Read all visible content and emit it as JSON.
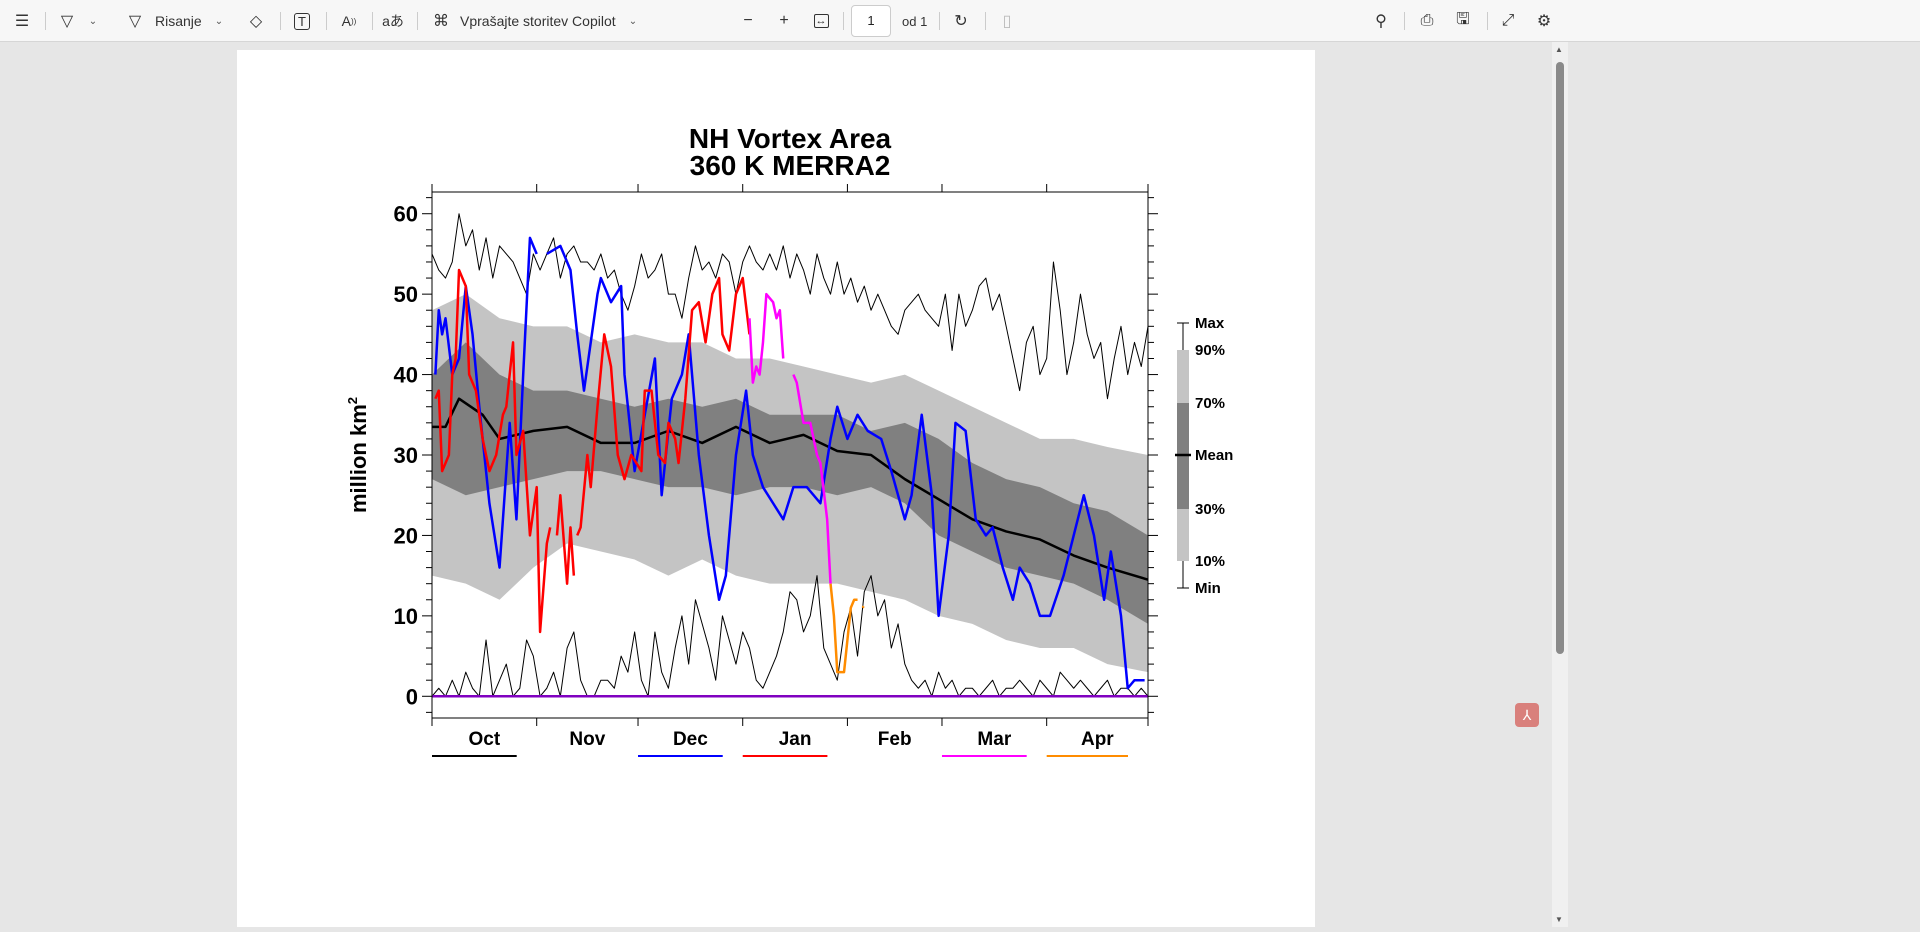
{
  "toolbar": {
    "draw_label": "Risanje",
    "copilot_label": "Vprašajte storitev Copilot",
    "page_number": "1",
    "page_total": "od 1"
  },
  "chart_data": {
    "type": "line",
    "title": "NH Vortex Area",
    "subtitle": "360 K   MERRA2",
    "ylabel": "million km",
    "ylabel_sup": "2",
    "ylim": [
      -2.7,
      62.7
    ],
    "xlim_days": [
      0,
      212
    ],
    "yticks": [
      "0",
      "10",
      "20",
      "30",
      "40",
      "50",
      "60"
    ],
    "months": [
      "Oct",
      "Nov",
      "Dec",
      "Jan",
      "Feb",
      "Mar",
      "Apr"
    ],
    "legend": {
      "max": "Max",
      "p90": "90%",
      "p70": "70%",
      "mean": "Mean",
      "p30": "30%",
      "p10": "10%",
      "min": "Min"
    },
    "band_days": [
      0,
      10,
      20,
      30,
      40,
      50,
      60,
      70,
      80,
      90,
      100,
      110,
      120,
      130,
      140,
      150,
      160,
      170,
      180,
      190,
      200,
      212
    ],
    "p90": [
      48,
      50,
      47,
      46,
      46,
      44,
      45,
      44,
      44,
      42,
      42,
      41,
      40,
      39,
      40,
      38,
      36,
      34,
      32,
      32,
      31,
      30
    ],
    "p70": [
      40,
      44,
      40,
      38,
      38,
      37,
      36,
      37,
      36,
      37,
      35,
      35,
      35,
      33,
      34,
      32,
      29,
      27,
      26,
      24,
      23,
      20
    ],
    "p30": [
      27,
      25,
      26,
      27,
      28,
      28,
      27,
      26,
      26,
      25,
      26,
      26,
      25,
      26,
      24,
      20,
      18,
      16,
      15,
      14,
      12,
      9
    ],
    "p10": [
      15,
      14,
      12,
      16,
      19,
      18,
      17,
      15,
      17,
      15,
      14,
      14,
      14,
      13,
      12,
      10,
      9,
      7,
      6,
      6,
      4,
      3
    ],
    "mean": [
      [
        0,
        33.5
      ],
      [
        4,
        33.5
      ],
      [
        8,
        37
      ],
      [
        15,
        35
      ],
      [
        20,
        32
      ],
      [
        30,
        33
      ],
      [
        40,
        33.5
      ],
      [
        50,
        31.5
      ],
      [
        60,
        31.5
      ],
      [
        70,
        33
      ],
      [
        80,
        31.5
      ],
      [
        90,
        33.5
      ],
      [
        100,
        31.5
      ],
      [
        110,
        32.5
      ],
      [
        120,
        30.5
      ],
      [
        130,
        30
      ],
      [
        140,
        27
      ],
      [
        150,
        24.5
      ],
      [
        160,
        22
      ],
      [
        170,
        20.5
      ],
      [
        180,
        19.5
      ],
      [
        190,
        17.5
      ],
      [
        200,
        16
      ],
      [
        212,
        14.5
      ]
    ],
    "max_step_days": 2,
    "max": [
      55,
      53,
      52,
      54,
      60,
      56,
      58,
      53,
      57,
      52,
      56,
      55,
      54,
      52,
      50,
      55,
      53,
      55,
      57,
      52,
      55,
      56,
      54,
      54,
      53,
      55,
      52,
      53,
      50,
      48,
      51,
      55,
      52,
      53,
      55,
      50,
      50,
      47,
      52,
      56,
      53,
      54,
      52,
      55,
      54,
      50,
      54,
      56,
      54,
      53,
      55,
      53,
      56,
      52,
      55,
      53,
      50,
      55,
      52,
      50,
      54,
      50,
      52,
      49,
      51,
      48,
      50,
      48,
      46,
      45,
      48,
      49,
      50,
      48,
      47,
      46,
      50,
      43,
      50,
      46,
      48,
      51,
      52,
      48,
      50,
      46,
      42,
      38,
      44,
      46,
      40,
      42,
      54,
      48,
      40,
      44,
      50,
      45,
      42,
      44,
      37,
      42,
      46,
      40,
      44,
      41,
      46,
      47
    ],
    "min": [
      0,
      1,
      0,
      2,
      0,
      3,
      1,
      0,
      7,
      0,
      2,
      4,
      0,
      1,
      7,
      5,
      0,
      1,
      3,
      0,
      6,
      8,
      2,
      0,
      0,
      2,
      2,
      1,
      5,
      3,
      8,
      2,
      0,
      8,
      3,
      1,
      6,
      10,
      4,
      12,
      9,
      6,
      2,
      10,
      7,
      4,
      8,
      6,
      2,
      1,
      3,
      5,
      8,
      13,
      12,
      8,
      10,
      15,
      6,
      4,
      2,
      8,
      11,
      5,
      13,
      15,
      10,
      12,
      6,
      9,
      4,
      2,
      1,
      2,
      0,
      3,
      1,
      2,
      0,
      1,
      1,
      0,
      1,
      2,
      0,
      1,
      1,
      2,
      1,
      0,
      2,
      1,
      0,
      3,
      2,
      1,
      2,
      1,
      0,
      1,
      2,
      0,
      1,
      1,
      0,
      1,
      0,
      2
    ],
    "series": [
      {
        "name": "blue",
        "color": "#0000ff",
        "segments": [
          [
            [
              1,
              40
            ],
            [
              2,
              48
            ],
            [
              3,
              45
            ],
            [
              4,
              47
            ],
            [
              6,
              40
            ],
            [
              8,
              42
            ],
            [
              10,
              51
            ],
            [
              12,
              45
            ],
            [
              14,
              36
            ],
            [
              17,
              24
            ],
            [
              20,
              16
            ],
            [
              23,
              34
            ],
            [
              25,
              22
            ],
            [
              27,
              40
            ],
            [
              29,
              57
            ],
            [
              31,
              55
            ]
          ],
          [
            [
              34,
              55
            ],
            [
              38,
              56
            ],
            [
              41,
              53
            ],
            [
              43,
              45
            ],
            [
              45,
              38
            ],
            [
              49,
              50
            ],
            [
              50,
              52
            ],
            [
              53,
              49
            ],
            [
              56,
              51
            ],
            [
              57,
              40
            ],
            [
              60,
              28
            ],
            [
              63,
              35
            ],
            [
              66,
              42
            ],
            [
              68,
              25
            ],
            [
              71,
              37
            ],
            [
              74,
              40
            ],
            [
              76,
              45
            ],
            [
              79,
              30
            ],
            [
              82,
              20
            ],
            [
              85,
              12
            ],
            [
              87,
              15
            ],
            [
              90,
              30
            ],
            [
              93,
              38
            ],
            [
              95,
              30
            ],
            [
              98,
              26
            ],
            [
              101,
              24
            ],
            [
              104,
              22
            ],
            [
              107,
              26
            ],
            [
              111,
              26
            ],
            [
              115,
              24
            ],
            [
              118,
              32
            ],
            [
              120,
              36
            ],
            [
              123,
              32
            ],
            [
              126,
              35
            ],
            [
              129,
              33
            ],
            [
              133,
              32
            ],
            [
              136,
              28
            ],
            [
              140,
              22
            ],
            [
              142,
              25
            ],
            [
              145,
              35
            ],
            [
              148,
              25
            ],
            [
              150,
              10
            ],
            [
              153,
              20
            ],
            [
              155,
              34
            ],
            [
              158,
              33
            ],
            [
              161,
              22
            ],
            [
              164,
              20
            ],
            [
              166,
              21
            ],
            [
              169,
              16
            ],
            [
              172,
              12
            ],
            [
              174,
              16
            ],
            [
              177,
              14
            ],
            [
              180,
              10
            ],
            [
              183,
              10
            ],
            [
              187,
              15
            ],
            [
              190,
              20
            ],
            [
              193,
              25
            ],
            [
              196,
              20
            ],
            [
              199,
              12
            ],
            [
              201,
              18
            ],
            [
              204,
              10
            ],
            [
              206,
              1
            ],
            [
              208,
              2
            ],
            [
              211,
              2
            ]
          ]
        ]
      },
      {
        "name": "red",
        "color": "#ff0000",
        "segments": [
          [
            [
              1,
              37
            ],
            [
              2,
              38
            ],
            [
              3,
              28
            ],
            [
              5,
              30
            ],
            [
              6,
              40
            ],
            [
              7,
              42
            ],
            [
              8,
              53
            ],
            [
              10,
              51
            ],
            [
              11,
              40
            ],
            [
              13,
              38
            ],
            [
              15,
              32
            ],
            [
              17,
              28
            ],
            [
              19,
              30
            ],
            [
              21,
              35
            ],
            [
              22,
              36
            ],
            [
              24,
              44
            ],
            [
              25,
              30
            ],
            [
              27,
              33
            ],
            [
              29,
              20
            ],
            [
              31,
              26
            ],
            [
              32,
              8
            ],
            [
              34,
              19
            ],
            [
              35,
              21
            ]
          ],
          [
            [
              37,
              20
            ],
            [
              38,
              25
            ],
            [
              40,
              14
            ],
            [
              41,
              21
            ],
            [
              42,
              15
            ]
          ],
          [
            [
              43,
              20
            ],
            [
              44,
              21
            ],
            [
              46,
              30
            ],
            [
              47,
              26
            ],
            [
              49,
              36
            ],
            [
              51,
              45
            ],
            [
              53,
              41
            ],
            [
              55,
              30
            ],
            [
              57,
              27
            ],
            [
              59,
              30
            ],
            [
              62,
              28
            ],
            [
              63,
              38
            ],
            [
              65,
              38
            ],
            [
              67,
              30
            ],
            [
              69,
              29
            ],
            [
              70,
              34
            ],
            [
              72,
              32
            ],
            [
              73,
              29
            ],
            [
              75,
              37
            ],
            [
              77,
              48
            ],
            [
              79,
              49
            ],
            [
              81,
              44
            ],
            [
              83,
              50
            ],
            [
              85,
              52
            ],
            [
              86,
              45
            ],
            [
              88,
              43
            ],
            [
              90,
              50
            ],
            [
              92,
              52
            ],
            [
              94,
              45
            ]
          ]
        ]
      },
      {
        "name": "magenta",
        "color": "#ff00ff",
        "segments": [
          [
            [
              94,
              47
            ],
            [
              95,
              39
            ],
            [
              96,
              41
            ],
            [
              97,
              40
            ],
            [
              98,
              44
            ],
            [
              99,
              50
            ],
            [
              101,
              49
            ],
            [
              102,
              47
            ],
            [
              103,
              48
            ],
            [
              104,
              42
            ]
          ],
          [
            [
              107,
              40
            ],
            [
              108,
              39
            ],
            [
              110,
              34
            ],
            [
              112,
              34
            ],
            [
              114,
              30
            ],
            [
              115,
              29
            ],
            [
              117,
              22
            ],
            [
              118,
              14
            ]
          ]
        ]
      },
      {
        "name": "orange",
        "color": "#ff8c00",
        "segments": [
          [
            [
              118,
              14
            ],
            [
              119,
              10
            ],
            [
              120,
              3
            ],
            [
              121,
              3
            ],
            [
              122,
              3
            ],
            [
              124,
              11
            ],
            [
              125,
              12
            ],
            [
              126,
              12
            ]
          ],
          [
            [
              127.5,
              11
            ],
            [
              127.8,
              11.2
            ]
          ]
        ]
      },
      {
        "name": "purple",
        "color": "#8000c0",
        "segments": [
          [
            [
              0,
              0
            ],
            [
              212,
              0
            ]
          ]
        ]
      }
    ],
    "year_legend_colors": [
      "#000000",
      "#0000ff",
      "#ff0000",
      "#ff00ff",
      "#ff8c00"
    ]
  }
}
